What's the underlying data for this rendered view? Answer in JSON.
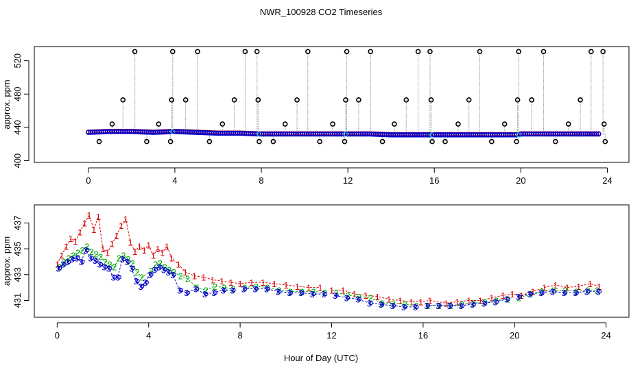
{
  "title": "NWR_100928  CO2 Timeseries",
  "xlabel": "Hour of Day (UTC)",
  "colors": {
    "series1": "#dd0000",
    "series2": "#00aa00",
    "series3": "#0000cc",
    "flagged": "#00c8d8",
    "spike": "#000000",
    "connector": "#999999"
  },
  "chart_data": [
    {
      "type": "scatter",
      "name": "top-panel",
      "ylabel": "approx. ppm",
      "xlim": [
        -2.5,
        25
      ],
      "ylim": [
        398,
        537
      ],
      "xticks": [
        0,
        4,
        8,
        12,
        16,
        20,
        24
      ],
      "yticks": [
        400,
        440,
        480,
        520
      ],
      "baseline": {
        "x": [
          0,
          1,
          2,
          3,
          4,
          5,
          6,
          7,
          7.9,
          8,
          9,
          10,
          11,
          12,
          13,
          14,
          15,
          15.9,
          16,
          17,
          18,
          19,
          19.9,
          20,
          21,
          22,
          23,
          23.8
        ],
        "y": [
          434,
          435,
          435,
          434,
          435,
          434,
          433,
          433,
          432,
          432,
          432,
          432,
          432,
          432,
          432,
          431,
          431,
          431,
          431,
          431,
          431,
          431,
          431,
          432,
          432,
          432,
          432,
          432
        ]
      },
      "spikes": {
        "x": [
          0.5,
          1.1,
          1.6,
          2.15,
          2.7,
          3.25,
          3.8,
          3.85,
          3.9,
          4.5,
          5.05,
          5.6,
          6.2,
          6.75,
          7.25,
          7.8,
          7.85,
          7.9,
          8.55,
          9.1,
          9.65,
          10.15,
          10.7,
          11.3,
          11.85,
          11.9,
          11.95,
          12.5,
          13.05,
          13.6,
          14.15,
          14.7,
          15.25,
          15.8,
          15.85,
          15.9,
          16.5,
          17.1,
          17.6,
          18.1,
          18.65,
          19.25,
          19.8,
          19.85,
          19.9,
          20.5,
          21.05,
          21.6,
          22.2,
          22.75,
          23.25,
          23.8,
          23.85,
          23.9
        ],
        "y": [
          423,
          444,
          473,
          531,
          423,
          444,
          423,
          473,
          531,
          473,
          531,
          423,
          444,
          473,
          531,
          531,
          473,
          423,
          423,
          444,
          473,
          531,
          423,
          444,
          423,
          473,
          531,
          473,
          531,
          423,
          444,
          473,
          531,
          531,
          473,
          423,
          423,
          444,
          473,
          531,
          423,
          444,
          423,
          473,
          531,
          473,
          531,
          423,
          444,
          473,
          531,
          531,
          444,
          423
        ]
      }
    },
    {
      "type": "scatter",
      "name": "bottom-panel",
      "ylabel": "approx. ppm",
      "xlim": [
        -1,
        25
      ],
      "ylim": [
        429.7,
        438.4
      ],
      "xticks": [
        0,
        4,
        8,
        12,
        16,
        20,
        24
      ],
      "yticks": [
        431,
        433,
        435,
        437
      ],
      "series": [
        {
          "name": "1",
          "label": "1",
          "x": [
            0,
            0.2,
            0.4,
            0.6,
            0.8,
            1.0,
            1.2,
            1.4,
            1.6,
            1.8,
            2.0,
            2.2,
            2.4,
            2.6,
            2.8,
            3.0,
            3.2,
            3.4,
            3.6,
            3.8,
            4.0,
            4.2,
            4.4,
            4.6,
            4.8,
            5.0,
            5.3,
            5.6,
            6.0,
            6.4,
            6.8,
            7.2,
            7.6,
            8.0,
            8.5,
            9.0,
            9.5,
            10.0,
            10.5,
            11.0,
            11.5,
            12.0,
            12.5,
            13.0,
            13.5,
            14.0,
            14.5,
            15.0,
            15.5,
            15.9,
            16.3,
            17.0,
            17.5,
            18.0,
            18.5,
            19.0,
            19.5,
            19.9,
            20.3,
            20.8,
            21.3,
            21.8,
            22.3,
            22.8,
            23.3,
            23.7
          ],
          "y": [
            433.8,
            434.5,
            435.2,
            435.8,
            435.6,
            436.3,
            437.0,
            437.6,
            436.5,
            437.5,
            435.0,
            434.7,
            435.4,
            436.0,
            436.8,
            437.3,
            435.5,
            434.8,
            435.2,
            434.9,
            435.3,
            434.5,
            435.0,
            434.7,
            435.2,
            434.3,
            433.8,
            433.2,
            432.9,
            432.8,
            432.6,
            432.5,
            432.4,
            432.3,
            432.4,
            432.4,
            432.3,
            432.2,
            432.1,
            432.0,
            432.0,
            431.8,
            431.8,
            431.5,
            431.4,
            431.3,
            431.1,
            431.0,
            430.9,
            430.9,
            431.0,
            430.8,
            430.9,
            431.0,
            431.0,
            431.2,
            431.4,
            431.5,
            431.4,
            431.7,
            432.0,
            432.2,
            432.0,
            432.1,
            432.3,
            432.1
          ]
        },
        {
          "name": "2",
          "label": "2",
          "x": [
            0.1,
            0.3,
            0.5,
            0.7,
            0.9,
            1.1,
            1.3,
            1.5,
            1.7,
            1.9,
            2.1,
            2.3,
            2.5,
            2.7,
            2.9,
            3.1,
            3.3,
            3.5,
            3.7,
            4.1,
            4.3,
            4.5,
            4.7,
            4.9,
            5.1,
            5.4,
            5.7,
            6.1,
            6.5,
            6.9,
            7.3,
            7.7,
            8.2,
            8.7,
            9.2,
            9.7,
            10.2,
            10.7,
            11.2,
            11.7,
            12.2,
            12.7,
            13.2,
            13.7,
            14.2,
            14.7,
            15.2,
            15.7,
            16.2,
            16.7,
            17.2,
            17.7,
            18.2,
            18.7,
            19.2,
            19.7,
            20.2,
            20.7,
            21.2,
            21.7,
            22.2,
            22.7,
            23.2,
            23.6
          ],
          "y": [
            433.6,
            434.0,
            434.3,
            434.5,
            434.7,
            434.9,
            435.2,
            434.8,
            434.6,
            434.4,
            434.0,
            433.8,
            433.6,
            434.3,
            434.5,
            434.2,
            433.9,
            433.2,
            432.8,
            433.3,
            433.8,
            433.9,
            433.6,
            433.4,
            433.2,
            432.9,
            432.7,
            432.0,
            431.8,
            432.1,
            432.0,
            431.9,
            432.0,
            432.1,
            432.0,
            431.8,
            431.7,
            431.7,
            431.7,
            431.6,
            431.6,
            431.4,
            431.3,
            431.2,
            430.8,
            430.8,
            430.7,
            430.6,
            430.6,
            430.6,
            430.6,
            430.7,
            430.8,
            430.9,
            431.0,
            431.1,
            431.2,
            431.5,
            431.7,
            431.8,
            431.8,
            431.7,
            431.8,
            431.8
          ]
        },
        {
          "name": "3",
          "label": "3",
          "x": [
            0.05,
            0.25,
            0.45,
            0.65,
            0.85,
            1.05,
            1.25,
            1.45,
            1.65,
            1.85,
            2.05,
            2.25,
            2.45,
            2.65,
            2.85,
            3.05,
            3.25,
            3.45,
            3.65,
            3.85,
            4.05,
            4.25,
            4.45,
            4.65,
            4.85,
            5.05,
            5.35,
            5.65,
            6.05,
            6.45,
            6.85,
            7.25,
            7.65,
            8.15,
            8.65,
            9.15,
            9.65,
            10.15,
            10.65,
            11.15,
            11.65,
            12.15,
            12.65,
            13.15,
            13.65,
            14.15,
            14.65,
            15.15,
            15.65,
            16.15,
            16.65,
            17.15,
            17.65,
            18.15,
            18.65,
            19.15,
            19.65,
            20.15,
            20.65,
            21.15,
            21.65,
            22.15,
            22.65,
            23.15,
            23.65
          ],
          "y": [
            433.5,
            433.8,
            434.0,
            434.2,
            434.3,
            434.0,
            434.9,
            434.3,
            434.1,
            433.8,
            433.6,
            433.5,
            432.8,
            432.8,
            434.2,
            434.0,
            433.5,
            432.5,
            432.1,
            432.4,
            433.0,
            433.4,
            433.6,
            433.4,
            433.2,
            433.0,
            431.8,
            431.6,
            431.9,
            431.5,
            431.6,
            431.8,
            431.8,
            431.9,
            431.9,
            431.9,
            431.7,
            431.6,
            431.6,
            431.5,
            431.5,
            431.4,
            431.2,
            431.1,
            430.8,
            430.7,
            430.6,
            430.5,
            430.5,
            430.6,
            430.6,
            430.6,
            430.6,
            430.7,
            430.8,
            430.9,
            431.1,
            431.3,
            431.5,
            431.6,
            431.7,
            431.6,
            431.6,
            431.7,
            431.7
          ]
        }
      ]
    }
  ]
}
